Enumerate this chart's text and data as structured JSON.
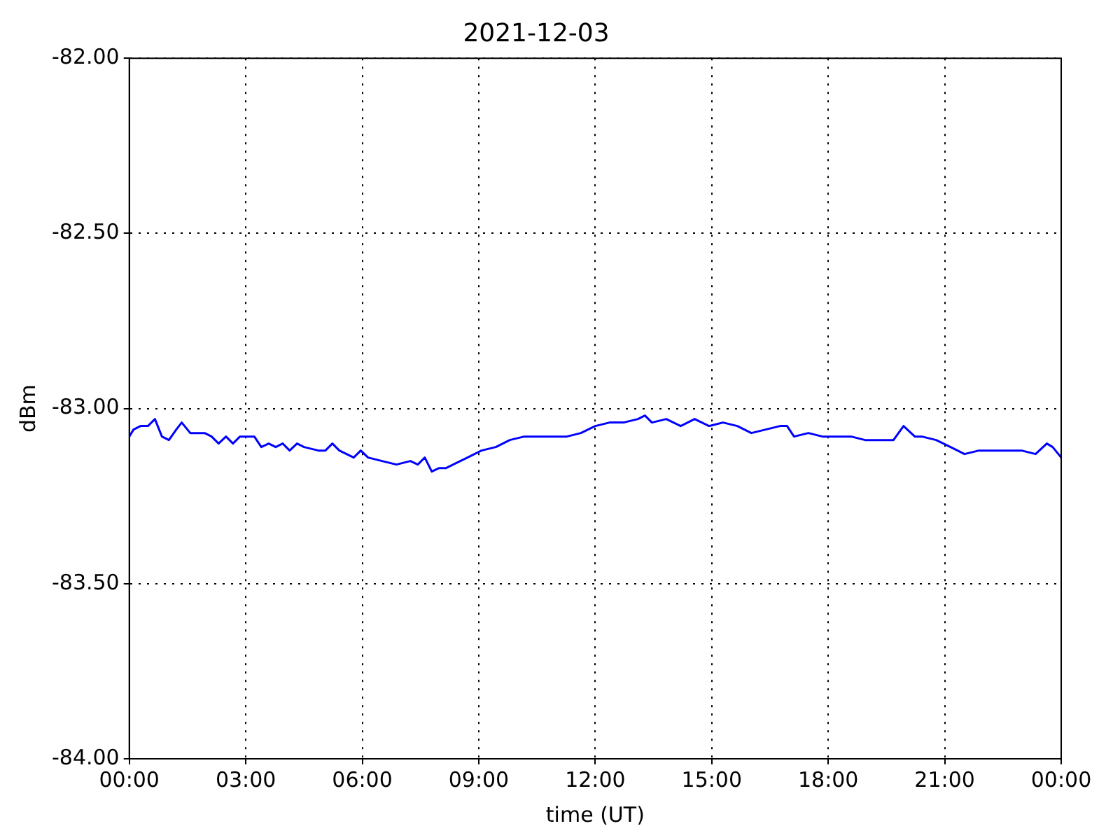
{
  "chart_data": {
    "type": "line",
    "title": "2021-12-03",
    "xlabel": "time (UT)",
    "ylabel": "dBm",
    "x": [
      0,
      0.11,
      0.29,
      0.48,
      0.66,
      0.84,
      1.02,
      1.21,
      1.35,
      1.57,
      1.76,
      1.94,
      2.12,
      2.3,
      2.49,
      2.67,
      2.85,
      3.04,
      3.22,
      3.4,
      3.59,
      3.77,
      3.95,
      4.13,
      4.32,
      4.5,
      4.87,
      5.05,
      5.23,
      5.41,
      5.78,
      5.96,
      6.15,
      6.51,
      6.88,
      7.24,
      7.43,
      7.61,
      7.79,
      7.98,
      8.16,
      8.34,
      8.71,
      9.07,
      9.44,
      9.8,
      10.17,
      10.54,
      10.9,
      11.27,
      11.63,
      12.0,
      12.37,
      12.73,
      13.1,
      13.28,
      13.46,
      13.83,
      14.2,
      14.56,
      14.93,
      15.29,
      15.66,
      16.02,
      16.39,
      16.76,
      16.94,
      17.12,
      17.49,
      17.85,
      18.22,
      18.59,
      18.95,
      19.32,
      19.68,
      19.94,
      20.23,
      20.41,
      20.78,
      21.15,
      21.51,
      21.88,
      22.24,
      22.61,
      22.98,
      23.34,
      23.63,
      23.78,
      24
    ],
    "series": [
      {
        "color": "#0000ff",
        "values": [
          -83.08,
          -83.06,
          -83.05,
          -83.05,
          -83.03,
          -83.08,
          -83.09,
          -83.06,
          -83.04,
          -83.07,
          -83.07,
          -83.07,
          -83.08,
          -83.1,
          -83.08,
          -83.1,
          -83.08,
          -83.08,
          -83.08,
          -83.11,
          -83.1,
          -83.11,
          -83.1,
          -83.12,
          -83.1,
          -83.11,
          -83.12,
          -83.12,
          -83.1,
          -83.12,
          -83.14,
          -83.12,
          -83.14,
          -83.15,
          -83.16,
          -83.15,
          -83.16,
          -83.14,
          -83.18,
          -83.17,
          -83.17,
          -83.16,
          -83.14,
          -83.12,
          -83.11,
          -83.09,
          -83.08,
          -83.08,
          -83.08,
          -83.08,
          -83.07,
          -83.05,
          -83.04,
          -83.04,
          -83.03,
          -83.02,
          -83.04,
          -83.03,
          -83.05,
          -83.03,
          -83.05,
          -83.04,
          -83.05,
          -83.07,
          -83.06,
          -83.05,
          -83.05,
          -83.08,
          -83.07,
          -83.08,
          -83.08,
          -83.08,
          -83.09,
          -83.09,
          -83.09,
          -83.05,
          -83.08,
          -83.08,
          -83.09,
          -83.11,
          -83.13,
          -83.12,
          -83.12,
          -83.12,
          -83.12,
          -83.13,
          -83.1,
          -83.11,
          -83.14
        ]
      }
    ],
    "xlim": [
      0,
      24
    ],
    "xticks": [
      {
        "value": 0,
        "label": "00:00"
      },
      {
        "value": 3,
        "label": "03:00"
      },
      {
        "value": 6,
        "label": "06:00"
      },
      {
        "value": 9,
        "label": "09:00"
      },
      {
        "value": 12,
        "label": "12:00"
      },
      {
        "value": 15,
        "label": "15:00"
      },
      {
        "value": 18,
        "label": "18:00"
      },
      {
        "value": 21,
        "label": "21:00"
      },
      {
        "value": 24,
        "label": "00:00"
      }
    ],
    "ylim": [
      -84,
      -82
    ],
    "yticks": [
      {
        "value": -84,
        "label": "-84.00"
      },
      {
        "value": -83.5,
        "label": "-83.50"
      },
      {
        "value": -83,
        "label": "-83.00"
      },
      {
        "value": -82.5,
        "label": "-82.50"
      },
      {
        "value": -82,
        "label": "-82.00"
      }
    ],
    "grid": true,
    "legend": false,
    "marker": "none",
    "line_style": "solid"
  }
}
